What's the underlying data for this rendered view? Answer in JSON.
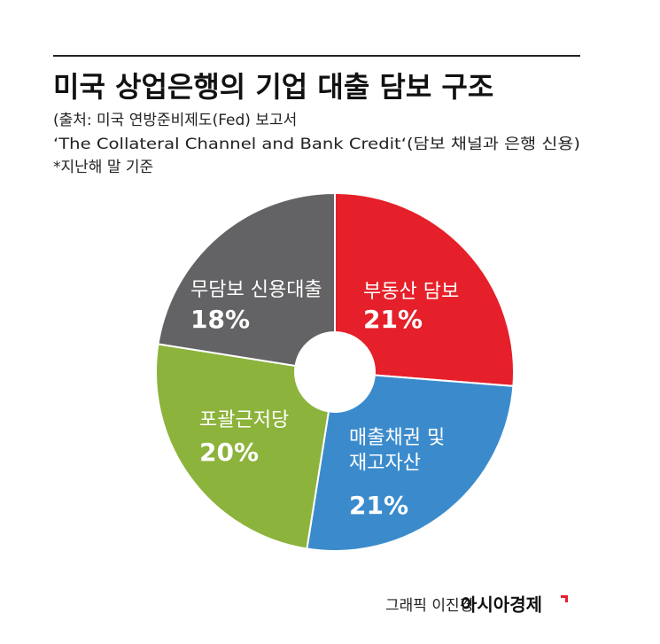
{
  "chart_data": {
    "type": "pie",
    "title": "미국 상업은행의 기업 대출 담보 구조",
    "subtitle": [
      "(출처: 미국 연방준비제도(Fed) 보고서",
      "‘The Collateral Channel and Bank Credit‘(담보 채널과 은행 신용)",
      "*지난해 말 기준"
    ],
    "categories": [
      "부동산 담보",
      "매출채권 및\n재고자산",
      "포괄근저당",
      "무담보 신용대출"
    ],
    "values": [
      21,
      21,
      20,
      18
    ],
    "value_labels": [
      "21%",
      "21%",
      "20%",
      "18%"
    ],
    "colors": [
      "#e5202a",
      "#3b8bcc",
      "#8cb33c",
      "#636366"
    ],
    "credit": "그래픽 이진경",
    "brand": "아시아경제"
  }
}
